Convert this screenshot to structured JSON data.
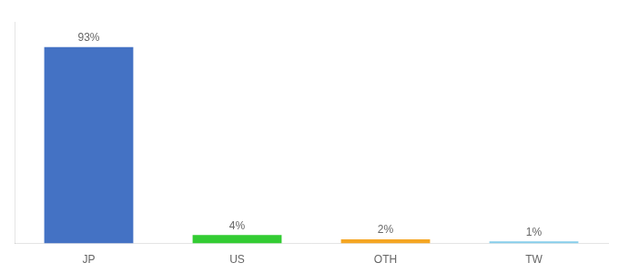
{
  "chart_data": {
    "type": "bar",
    "categories": [
      "JP",
      "US",
      "OTH",
      "TW"
    ],
    "values": [
      93,
      4,
      2,
      1
    ],
    "value_labels": [
      "93%",
      "4%",
      "2%",
      "1%"
    ],
    "data_labels": true,
    "colors": [
      "#4472c4",
      "#33cc33",
      "#f5a623",
      "#87ceeb"
    ],
    "ylim": [
      0,
      105
    ],
    "tick_labels": "x",
    "grid": false
  }
}
